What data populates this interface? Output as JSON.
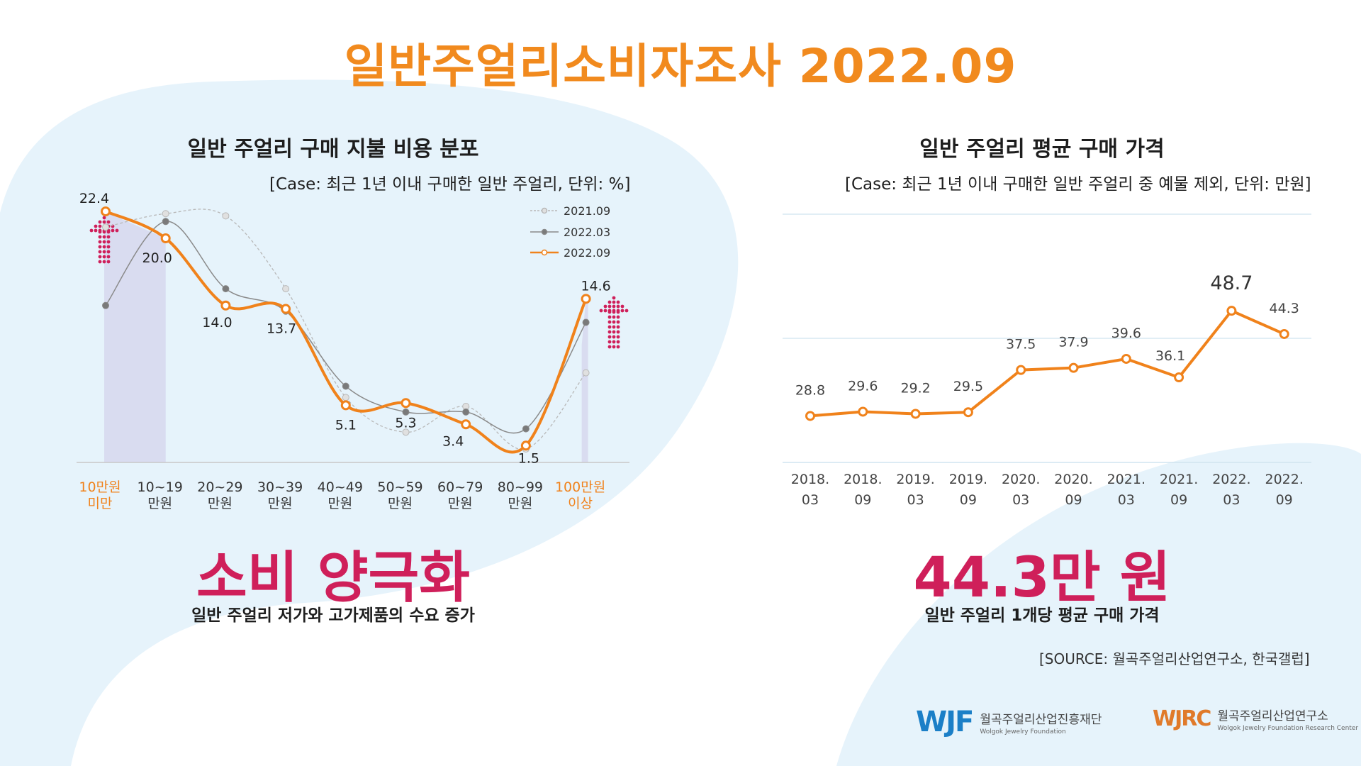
{
  "title": "일반주얼리소비자조사 2022.09",
  "left": {
    "title": "일반 주얼리 구매 지불 비용 분포",
    "subtitle": "[Case: 최근 1년 이내 구매한 일반 주얼리, 단위: %]",
    "headline": "소비 양극화",
    "caption": "일반 주얼리 저가와 고가제품의 수요 증가"
  },
  "right": {
    "title": "일반 주얼리 평균 구매 가격",
    "subtitle": "[Case: 최근 1년 이내 구매한 일반 주얼리 중 예물 제외, 단위: 만원]",
    "headline": "44.3만 원",
    "caption": "일반 주얼리 1개당 평균 구매 가격"
  },
  "source": "[SOURCE: 월곡주얼리산업연구소, 한국갤럽]",
  "logos": {
    "wjf_mark": "WJF",
    "wjf_name": "월곡주얼리산업진흥재단",
    "wjf_sub": "Wolgok Jewelry Foundation",
    "wjrc_mark": "WJRC",
    "wjrc_name": "월곡주얼리산업연구소",
    "wjrc_sub": "Wolgok Jewelry Foundation Research Center"
  },
  "colors": {
    "orange": "#f0821b",
    "magenta": "#cf1f5a",
    "title_orange": "#f18a1e",
    "band": "#d4d4ec",
    "bg_blob": "#e6f3fb"
  },
  "chart_data": [
    {
      "type": "line",
      "title": "일반 주얼리 구매 지불 비용 분포",
      "unit": "%",
      "categories": [
        [
          "10만원",
          "미만"
        ],
        [
          "10~19",
          "만원"
        ],
        [
          "20~29",
          "만원"
        ],
        [
          "30~39",
          "만원"
        ],
        [
          "40~49",
          "만원"
        ],
        [
          "50~59",
          "만원"
        ],
        [
          "60~79",
          "만원"
        ],
        [
          "80~99",
          "만원"
        ],
        [
          "100만원",
          "이상"
        ]
      ],
      "highlight_categories": [
        0,
        8
      ],
      "ylim": [
        0,
        25
      ],
      "series": [
        {
          "name": "2021.09",
          "values": [
            21.0,
            22.2,
            22.0,
            15.5,
            5.8,
            2.7,
            5.0,
            1.2,
            8.0
          ]
        },
        {
          "name": "2022.03",
          "values": [
            14.0,
            21.5,
            15.5,
            13.5,
            6.8,
            4.5,
            4.5,
            3.0,
            12.5
          ]
        },
        {
          "name": "2022.09",
          "values": [
            22.4,
            20.0,
            14.0,
            13.7,
            5.1,
            5.3,
            3.4,
            1.5,
            14.6
          ]
        }
      ],
      "labels": [
        "22.4",
        "20.0",
        "14.0",
        "13.7",
        "5.1",
        "5.3",
        "3.4",
        "1.5",
        "14.6"
      ],
      "legend_position": "top-right"
    },
    {
      "type": "line",
      "title": "일반 주얼리 평균 구매 가격",
      "unit": "만원",
      "categories": [
        [
          "2018.",
          "03"
        ],
        [
          "2018.",
          "09"
        ],
        [
          "2019.",
          "03"
        ],
        [
          "2019.",
          "09"
        ],
        [
          "2020.",
          "03"
        ],
        [
          "2020.",
          "09"
        ],
        [
          "2021.",
          "03"
        ],
        [
          "2021.",
          "09"
        ],
        [
          "2022.",
          "03"
        ],
        [
          "2022.",
          "09"
        ]
      ],
      "ylim": [
        20,
        50
      ],
      "series": [
        {
          "name": "평균 구매 가격",
          "values": [
            28.8,
            29.6,
            29.2,
            29.5,
            37.5,
            37.9,
            39.6,
            36.1,
            48.7,
            44.3
          ]
        }
      ],
      "labels": [
        "28.8",
        "29.6",
        "29.2",
        "29.5",
        "37.5",
        "37.9",
        "39.6",
        "36.1",
        "48.7",
        "44.3"
      ]
    }
  ]
}
